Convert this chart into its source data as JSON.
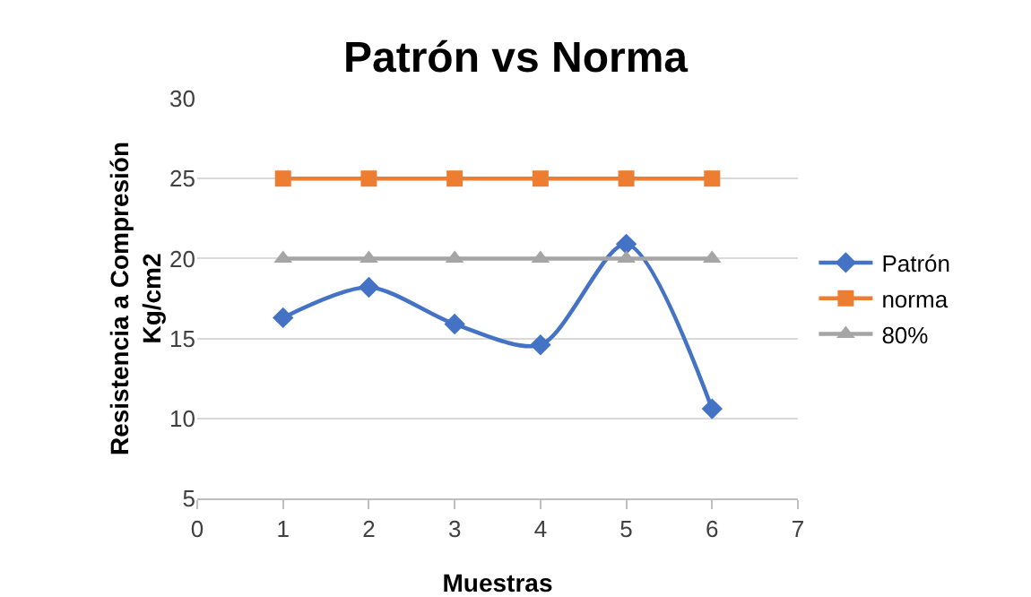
{
  "chart_data": {
    "type": "line",
    "title": "Patrón vs Norma",
    "xlabel": "Muestras",
    "ylabel": "Resistencia a Compresión Kg/cm2",
    "x": [
      1,
      2,
      3,
      4,
      5,
      6
    ],
    "xlim": [
      0,
      7
    ],
    "xticks": [
      0,
      1,
      2,
      3,
      4,
      5,
      6,
      7
    ],
    "ylim": [
      5,
      30
    ],
    "yticks": [
      5,
      10,
      15,
      20,
      25,
      30
    ],
    "grid": "y",
    "legend": "right",
    "series": [
      {
        "name": "Patrón",
        "color": "#4472c4",
        "marker": "diamond",
        "values": [
          16.3,
          18.2,
          15.9,
          14.6,
          20.9,
          10.6
        ]
      },
      {
        "name": "norma",
        "color": "#ed7d31",
        "marker": "square",
        "values": [
          25,
          25,
          25,
          25,
          25,
          25
        ]
      },
      {
        "name": "80%",
        "color": "#a5a5a5",
        "marker": "triangle",
        "values": [
          20,
          20,
          20,
          20,
          20,
          20
        ]
      }
    ]
  }
}
